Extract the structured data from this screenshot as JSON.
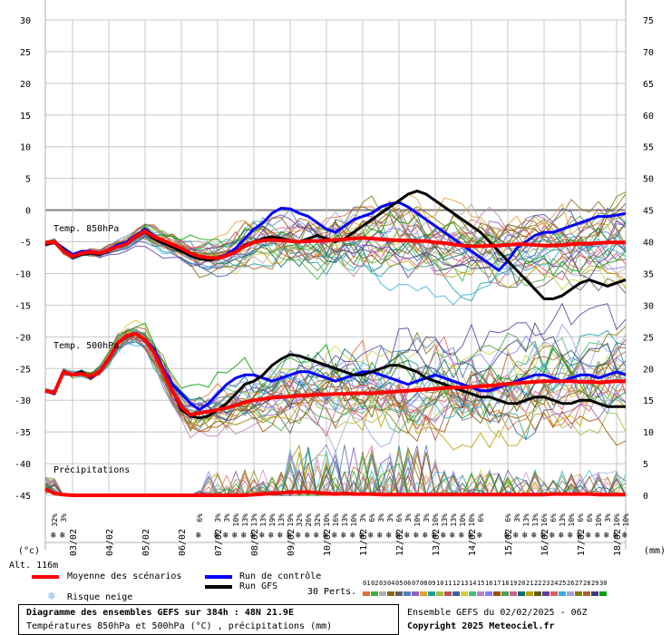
{
  "chart_data": {
    "type": "line",
    "title": "Diagramme des ensembles GEFS sur 384h : 48N 21.9E",
    "subtitle": "Températures 850hPa et 500hPa (°C) , précipitations (mm)",
    "left_axis": {
      "label": "(°c)",
      "ylim": [
        -45,
        30
      ],
      "ticks": [
        30,
        25,
        20,
        15,
        10,
        5,
        0,
        -5,
        -10,
        -15,
        -20,
        -25,
        -30,
        -35,
        -40,
        -45
      ]
    },
    "right_axis": {
      "label": "(mm)",
      "ylim": [
        0,
        75
      ],
      "ticks": [
        75,
        70,
        65,
        60,
        55,
        50,
        45,
        40,
        35,
        30,
        25,
        20,
        15,
        10,
        5,
        0
      ]
    },
    "x_ticks": [
      "03/02",
      "04/02",
      "05/02",
      "06/02",
      "07/02",
      "08/02",
      "09/02",
      "10/02",
      "11/02",
      "12/02",
      "13/02",
      "14/02",
      "15/02",
      "16/02",
      "17/02",
      "18/02"
    ],
    "panel_labels": {
      "t850": "Temp. 850hPa",
      "t500": "Temp. 500hPa",
      "precip": "Précipitations"
    },
    "x_hours": [
      0,
      6,
      12,
      18,
      24,
      30,
      36,
      42,
      48,
      54,
      60,
      66,
      72,
      78,
      84,
      90,
      96,
      102,
      108,
      114,
      120,
      126,
      132,
      138,
      144,
      150,
      156,
      162,
      168,
      174,
      180,
      186,
      192,
      198,
      204,
      210,
      216,
      222,
      228,
      234,
      240,
      246,
      252,
      258,
      264,
      270,
      276,
      282,
      288,
      294,
      300,
      306,
      312,
      318,
      324,
      330,
      336,
      342,
      348,
      354,
      360,
      366,
      372,
      378,
      384
    ],
    "series": [
      {
        "name": "Moyenne des scénarios",
        "panel": "t850",
        "values": [
          -5.2,
          -5.0,
          -6.5,
          -7.3,
          -6.8,
          -6.6,
          -6.8,
          -6.3,
          -5.8,
          -5.3,
          -4.2,
          -3.3,
          -4.2,
          -4.8,
          -5.4,
          -6.0,
          -6.8,
          -7.3,
          -7.5,
          -7.6,
          -7.2,
          -6.6,
          -5.7,
          -5.1,
          -4.8,
          -4.7,
          -4.8,
          -4.9,
          -5.0,
          -4.9,
          -4.9,
          -4.8,
          -4.7,
          -4.6,
          -4.5,
          -4.4,
          -4.5,
          -4.6,
          -4.7,
          -4.8,
          -4.8,
          -4.9,
          -4.9,
          -5.1,
          -5.2,
          -5.4,
          -5.6,
          -5.7,
          -5.7,
          -5.6,
          -5.6,
          -5.5,
          -5.4,
          -5.4,
          -5.5,
          -5.6,
          -5.6,
          -5.5,
          -5.4,
          -5.3,
          -5.3,
          -5.2,
          -5.1,
          -5.1,
          -5.1
        ]
      },
      {
        "name": "Run de contrôle",
        "panel": "t850",
        "values": [
          -5.3,
          -5.0,
          -6.0,
          -7.0,
          -6.5,
          -6.5,
          -6.8,
          -6.2,
          -5.5,
          -5.0,
          -4.0,
          -3.0,
          -4.0,
          -5.0,
          -5.8,
          -6.3,
          -7.0,
          -7.5,
          -7.8,
          -7.5,
          -7.0,
          -6.0,
          -4.5,
          -3.0,
          -2.0,
          -0.5,
          0.3,
          0.2,
          -0.5,
          -1.0,
          -2.0,
          -3.0,
          -3.5,
          -2.5,
          -1.5,
          -1.0,
          -0.5,
          0.5,
          1.0,
          1.2,
          0.5,
          -0.5,
          -1.5,
          -2.5,
          -3.5,
          -4.5,
          -5.5,
          -6.5,
          -7.5,
          -8.5,
          -9.5,
          -8.0,
          -6.0,
          -5.0,
          -4.0,
          -3.5,
          -3.5,
          -3.0,
          -2.5,
          -2.0,
          -1.5,
          -1.0,
          -1.0,
          -0.8,
          -0.5
        ]
      },
      {
        "name": "Run GFS",
        "panel": "t850",
        "values": [
          -5.5,
          -5.1,
          -6.2,
          -7.5,
          -7.0,
          -6.8,
          -7.0,
          -6.4,
          -5.8,
          -5.3,
          -4.3,
          -3.5,
          -4.5,
          -5.2,
          -5.8,
          -6.5,
          -7.2,
          -7.7,
          -7.9,
          -7.7,
          -7.2,
          -6.5,
          -5.5,
          -5.0,
          -4.5,
          -4.2,
          -4.5,
          -4.8,
          -5.0,
          -4.5,
          -4.0,
          -4.5,
          -5.0,
          -4.5,
          -3.5,
          -2.5,
          -1.5,
          -0.5,
          0.5,
          1.5,
          2.5,
          3.0,
          2.5,
          1.5,
          0.5,
          -0.5,
          -1.5,
          -2.5,
          -3.5,
          -5.0,
          -6.5,
          -8.0,
          -9.5,
          -11.0,
          -12.5,
          -14.0,
          -14.0,
          -13.5,
          -12.5,
          -11.5,
          -11.0,
          -11.5,
          -12.0,
          -11.5,
          -11.0
        ]
      },
      {
        "name": "Moyenne des scénarios",
        "panel": "t500",
        "values": [
          -28.5,
          -28.8,
          -25.5,
          -26.0,
          -25.8,
          -26.2,
          -25.5,
          -23.5,
          -21.0,
          -19.8,
          -19.5,
          -20.5,
          -22.5,
          -25.5,
          -28.5,
          -31.0,
          -32.3,
          -32.0,
          -31.8,
          -31.5,
          -31.2,
          -30.8,
          -30.3,
          -30.0,
          -29.8,
          -29.6,
          -29.5,
          -29.4,
          -29.3,
          -29.2,
          -29.1,
          -29.1,
          -29.0,
          -29.0,
          -28.9,
          -28.9,
          -28.9,
          -28.8,
          -28.7,
          -28.6,
          -28.5,
          -28.4,
          -28.3,
          -28.2,
          -28.1,
          -28.0,
          -28.0,
          -27.9,
          -27.8,
          -27.7,
          -27.6,
          -27.4,
          -27.3,
          -27.2,
          -27.1,
          -27.0,
          -27.0,
          -27.0,
          -27.0,
          -27.1,
          -27.1,
          -27.2,
          -27.1,
          -27.0,
          -27.0
        ]
      },
      {
        "name": "Run de contrôle",
        "panel": "t500",
        "values": [
          -28.5,
          -29.0,
          -25.5,
          -26.0,
          -25.5,
          -26.5,
          -25.5,
          -23.5,
          -21.0,
          -19.8,
          -19.5,
          -20.5,
          -22.0,
          -25.0,
          -27.5,
          -29.0,
          -30.5,
          -31.5,
          -30.5,
          -29.0,
          -27.5,
          -26.5,
          -26.0,
          -26.0,
          -26.5,
          -27.0,
          -26.5,
          -26.0,
          -25.5,
          -25.5,
          -26.0,
          -26.5,
          -27.0,
          -26.5,
          -26.0,
          -25.5,
          -25.5,
          -26.0,
          -26.5,
          -27.0,
          -27.5,
          -27.0,
          -26.5,
          -26.0,
          -26.5,
          -27.0,
          -27.5,
          -28.0,
          -28.5,
          -28.5,
          -28.0,
          -27.5,
          -27.0,
          -26.5,
          -26.0,
          -26.0,
          -26.5,
          -27.0,
          -26.5,
          -26.0,
          -26.0,
          -26.5,
          -26.0,
          -25.5,
          -26.0
        ]
      },
      {
        "name": "Run GFS",
        "panel": "t500",
        "values": [
          -28.5,
          -28.9,
          -25.5,
          -26.0,
          -25.6,
          -26.3,
          -25.5,
          -23.5,
          -21.0,
          -19.8,
          -19.5,
          -20.5,
          -22.5,
          -25.5,
          -28.5,
          -31.5,
          -32.5,
          -32.8,
          -32.5,
          -31.5,
          -30.5,
          -29.0,
          -27.5,
          -27.0,
          -26.0,
          -24.5,
          -23.5,
          -22.8,
          -23.0,
          -23.5,
          -24.0,
          -24.5,
          -25.0,
          -25.5,
          -26.0,
          -26.0,
          -25.5,
          -25.0,
          -24.5,
          -24.5,
          -25.0,
          -25.5,
          -26.5,
          -27.0,
          -27.5,
          -28.0,
          -28.5,
          -29.0,
          -29.5,
          -29.5,
          -30.0,
          -30.5,
          -30.5,
          -30.0,
          -29.5,
          -29.5,
          -30.0,
          -30.5,
          -30.5,
          -30.0,
          -30.0,
          -30.5,
          -31.0,
          -31.0,
          -31.0
        ]
      },
      {
        "name": "Moyenne des scénarios",
        "panel": "precip",
        "values": [
          1.0,
          0.3,
          0.1,
          0,
          0,
          0,
          0,
          0,
          0,
          0,
          0,
          0,
          0,
          0,
          0,
          0,
          0,
          0,
          0,
          0,
          0,
          0,
          0,
          0.1,
          0.2,
          0.3,
          0.4,
          0.5,
          0.5,
          0.5,
          0.4,
          0.3,
          0.2,
          0.3,
          0.2,
          0.2,
          0.2,
          0.1,
          0.1,
          0.1,
          0.1,
          0.1,
          0.1,
          0.1,
          0.1,
          0.1,
          0.1,
          0.1,
          0.1,
          0.1,
          0.1,
          0.1,
          0.1,
          0.1,
          0.1,
          0.1,
          0.2,
          0.2,
          0.2,
          0.2,
          0.2,
          0.1,
          0.1,
          0.1,
          0.1
        ]
      }
    ],
    "snow_risk_percent": [
      {
        "hour": 6,
        "label": "32%"
      },
      {
        "hour": 12,
        "label": "3%"
      },
      {
        "hour": 102,
        "label": "6%"
      },
      {
        "hour": 114,
        "label": "3%"
      },
      {
        "hour": 120,
        "label": "3%"
      },
      {
        "hour": 126,
        "label": "10%"
      },
      {
        "hour": 132,
        "label": "13%"
      },
      {
        "hour": 138,
        "label": "13%"
      },
      {
        "hour": 144,
        "label": "13%"
      },
      {
        "hour": 150,
        "label": "19%"
      },
      {
        "hour": 156,
        "label": "13%"
      },
      {
        "hour": 162,
        "label": "19%"
      },
      {
        "hour": 168,
        "label": "32%"
      },
      {
        "hour": 174,
        "label": "26%"
      },
      {
        "hour": 180,
        "label": "32%"
      },
      {
        "hour": 186,
        "label": "10%"
      },
      {
        "hour": 192,
        "label": "16%"
      },
      {
        "hour": 198,
        "label": "13%"
      },
      {
        "hour": 204,
        "label": "10%"
      },
      {
        "hour": 210,
        "label": "3%"
      },
      {
        "hour": 216,
        "label": "6%"
      },
      {
        "hour": 222,
        "label": "3%"
      },
      {
        "hour": 228,
        "label": "3%"
      },
      {
        "hour": 234,
        "label": "6%"
      },
      {
        "hour": 240,
        "label": "3%"
      },
      {
        "hour": 246,
        "label": "10%"
      },
      {
        "hour": 252,
        "label": "3%"
      },
      {
        "hour": 258,
        "label": "10%"
      },
      {
        "hour": 264,
        "label": "13%"
      },
      {
        "hour": 270,
        "label": "13%"
      },
      {
        "hour": 276,
        "label": "10%"
      },
      {
        "hour": 282,
        "label": "10%"
      },
      {
        "hour": 288,
        "label": "6%"
      },
      {
        "hour": 306,
        "label": "6%"
      },
      {
        "hour": 312,
        "label": "3%"
      },
      {
        "hour": 318,
        "label": "13%"
      },
      {
        "hour": 324,
        "label": "13%"
      },
      {
        "hour": 330,
        "label": "16%"
      },
      {
        "hour": 336,
        "label": "6%"
      },
      {
        "hour": 342,
        "label": "13%"
      },
      {
        "hour": 348,
        "label": "10%"
      },
      {
        "hour": 354,
        "label": "6%"
      },
      {
        "hour": 360,
        "label": "6%"
      },
      {
        "hour": 366,
        "label": "10%"
      },
      {
        "hour": 372,
        "label": "3%"
      },
      {
        "hour": 378,
        "label": "10%"
      },
      {
        "hour": 384,
        "label": "10%"
      }
    ],
    "perturbations": [
      "01",
      "02",
      "03",
      "04",
      "05",
      "06",
      "07",
      "08",
      "09",
      "10",
      "11",
      "12",
      "13",
      "14",
      "15",
      "16",
      "17",
      "18",
      "19",
      "20",
      "21",
      "22",
      "23",
      "24",
      "25",
      "26",
      "27",
      "28",
      "29",
      "30"
    ],
    "perturbation_colors": [
      "#e07030",
      "#40b040",
      "#b0b0b0",
      "#8b6914",
      "#606060",
      "#5080c0",
      "#9060c0",
      "#e0a030",
      "#20a0a0",
      "#a0c040",
      "#c05050",
      "#4060a0",
      "#d0d040",
      "#40c080",
      "#c080c0",
      "#8080ff",
      "#a05000",
      "#50a050",
      "#d06090",
      "#007070",
      "#c0a000",
      "#606000",
      "#6040a0",
      "#e06060",
      "#30b0e0",
      "#a0a0e0",
      "#808000",
      "#b06030",
      "#404080",
      "#00a000"
    ],
    "grid": true
  },
  "legend": {
    "altitude": "Alt. 116m",
    "mean_label": "Moyenne des scénarios",
    "mean_color": "#ff0000",
    "control_label": "Run de contrôle",
    "control_color": "#0000ff",
    "gfs_label": "Run GFS",
    "gfs_color": "#000000",
    "perts_label": "30 Perts.",
    "snow_label": "Risque neige",
    "snow_color": "#7fb4e6"
  },
  "footer": {
    "title": "Diagramme des ensembles GEFS sur 384h : 48N 21.9E",
    "subtitle": "Températures 850hPa et 500hPa (°C) , précipitations (mm)",
    "run_info": "Ensemble GEFS du 02/02/2025 - 06Z",
    "copyright": "Copyright 2025 Meteociel.fr"
  }
}
